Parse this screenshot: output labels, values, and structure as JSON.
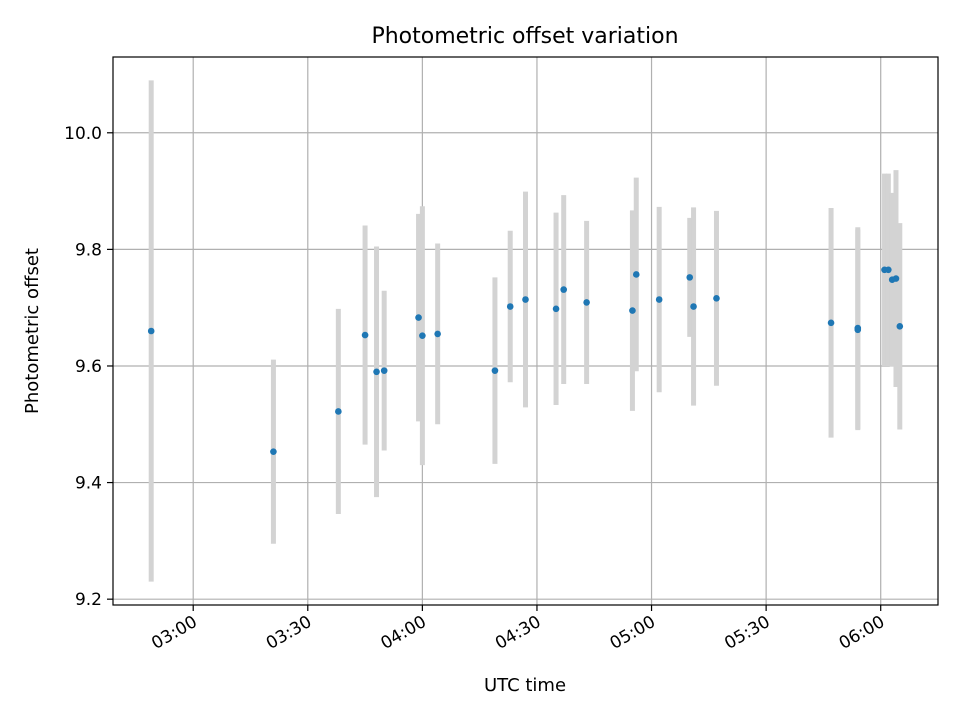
{
  "chart_data": {
    "type": "scatter",
    "title": "Photometric offset variation",
    "xlabel": "UTC time",
    "ylabel": "Photometric offset",
    "grid": true,
    "x_range": [
      "02:39",
      "06:15"
    ],
    "ylim": [
      9.19,
      10.13
    ],
    "x_ticks": [
      "03:00",
      "03:30",
      "04:00",
      "04:30",
      "05:00",
      "05:30",
      "06:00"
    ],
    "y_ticks": [
      "9.2",
      "9.4",
      "9.6",
      "9.8",
      "10.0"
    ],
    "marker_color": "#1f77b4",
    "errorbar_color": "#d3d3d3",
    "points": [
      {
        "x": "02:49",
        "y": 9.66,
        "err": 0.43
      },
      {
        "x": "03:21",
        "y": 9.453,
        "err": 0.158
      },
      {
        "x": "03:38",
        "y": 9.522,
        "err": 0.176
      },
      {
        "x": "03:45",
        "y": 9.653,
        "err": 0.188
      },
      {
        "x": "03:48",
        "y": 9.59,
        "err": 0.215
      },
      {
        "x": "03:50",
        "y": 9.592,
        "err": 0.137
      },
      {
        "x": "03:59",
        "y": 9.683,
        "err": 0.178
      },
      {
        "x": "04:00",
        "y": 9.652,
        "err": 0.222
      },
      {
        "x": "04:04",
        "y": 9.655,
        "err": 0.155
      },
      {
        "x": "04:19",
        "y": 9.592,
        "err": 0.16
      },
      {
        "x": "04:23",
        "y": 9.702,
        "err": 0.13
      },
      {
        "x": "04:27",
        "y": 9.714,
        "err": 0.185
      },
      {
        "x": "04:35",
        "y": 9.698,
        "err": 0.165
      },
      {
        "x": "04:37",
        "y": 9.731,
        "err": 0.162
      },
      {
        "x": "04:43",
        "y": 9.709,
        "err": 0.14
      },
      {
        "x": "04:55",
        "y": 9.695,
        "err": 0.172
      },
      {
        "x": "04:56",
        "y": 9.757,
        "err": 0.166
      },
      {
        "x": "05:02",
        "y": 9.714,
        "err": 0.159
      },
      {
        "x": "05:10",
        "y": 9.752,
        "err": 0.102
      },
      {
        "x": "05:11",
        "y": 9.702,
        "err": 0.17
      },
      {
        "x": "05:17",
        "y": 9.716,
        "err": 0.15
      },
      {
        "x": "05:47",
        "y": 9.674,
        "err": 0.197
      },
      {
        "x": "05:54",
        "y": 9.665,
        "err": 0.173
      },
      {
        "x": "05:54",
        "y": 9.662,
        "err": 0.172
      },
      {
        "x": "06:01",
        "y": 9.765,
        "err": 0.165
      },
      {
        "x": "06:02",
        "y": 9.765,
        "err": 0.165
      },
      {
        "x": "06:03",
        "y": 9.748,
        "err": 0.149
      },
      {
        "x": "06:04",
        "y": 9.75,
        "err": 0.186
      },
      {
        "x": "06:05",
        "y": 9.668,
        "err": 0.177
      }
    ]
  }
}
